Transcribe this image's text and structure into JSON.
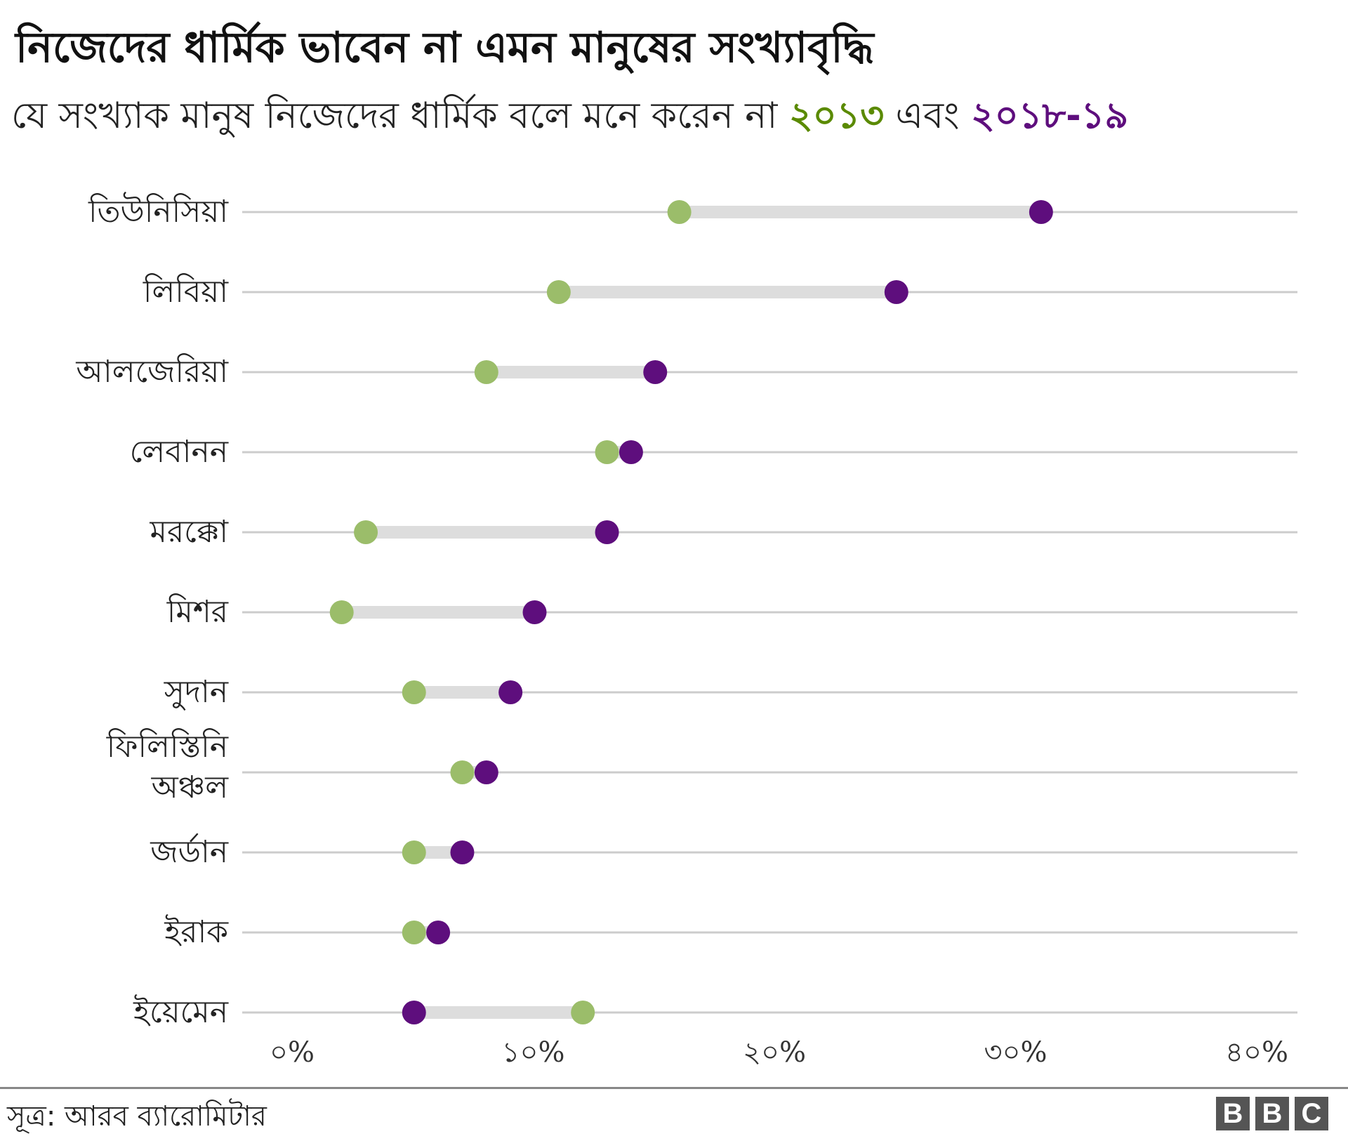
{
  "header": {
    "title": "নিজেদের ধার্মিক ভাবেন না এমন মানুষের সংখ্যাবৃদ্ধি",
    "subtitle_text": "যে সংখ্যাক মানুষ নিজেদের ধার্মিক বলে মনে করেন না",
    "legend_2013": "২০১৩",
    "legend_and": "এবং",
    "legend_2019": "২০১৮-১৯"
  },
  "footer": {
    "source": "সূত্র: আরব ব্যারোমিটার",
    "logo": [
      "B",
      "B",
      "C"
    ]
  },
  "colors": {
    "y2013_dot": "#9bbd6a",
    "y2013_text": "#5a8a00",
    "y2019": "#5e0e7d",
    "connector": "#dddddd",
    "gridline": "#cccccc"
  },
  "chart_data": {
    "type": "dumbbell",
    "title": "নিজেদের ধার্মিক ভাবেন না এমন মানুষের সংখ্যাবৃদ্ধি",
    "subtitle": "যে সংখ্যাক মানুষ নিজেদের ধার্মিক বলে মনে করেন না ২০১৩ এবং ২০১৮-১৯",
    "categories": [
      [
        "তিউনিসিয়া"
      ],
      [
        "লিবিয়া"
      ],
      [
        "আলজেরিয়া"
      ],
      [
        "লেবানন"
      ],
      [
        "মরক্কো"
      ],
      [
        "মিশর"
      ],
      [
        "সুদান"
      ],
      [
        "ফিলিস্তিনি",
        "অঞ্চল"
      ],
      [
        "জর্ডান"
      ],
      [
        "ইরাক"
      ],
      [
        "ইয়েমেন"
      ]
    ],
    "series": [
      {
        "name": "২০১৩",
        "values": [
          16,
          11,
          8,
          13,
          3,
          2,
          5,
          7,
          5,
          5,
          12
        ]
      },
      {
        "name": "২০১৮-১৯",
        "values": [
          31,
          25,
          15,
          14,
          13,
          10,
          9,
          8,
          7,
          6,
          5
        ]
      }
    ],
    "xlim": [
      0,
      42
    ],
    "x_ticks": [
      0,
      10,
      20,
      30,
      40
    ],
    "x_tick_labels": [
      "০%",
      "১০%",
      "২০%",
      "৩০%",
      "৪০%"
    ],
    "grid": true
  }
}
